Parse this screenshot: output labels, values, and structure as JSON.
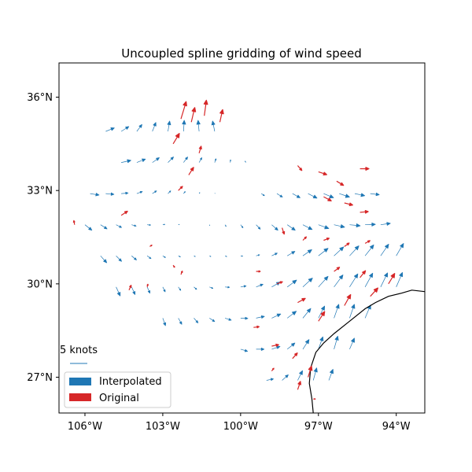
{
  "chart_data": {
    "type": "quiver",
    "title": "Uncoupled spline gridding of wind speed",
    "xlabel": "",
    "ylabel": "",
    "xlim": [
      -107.0,
      -92.9
    ],
    "ylim": [
      25.85,
      37.1
    ],
    "x_ticks": [
      {
        "value": -106,
        "label": "106°W"
      },
      {
        "value": -103,
        "label": "103°W"
      },
      {
        "value": -100,
        "label": "100°W"
      },
      {
        "value": -97,
        "label": "97°W"
      },
      {
        "value": -94,
        "label": "94°W"
      }
    ],
    "y_ticks": [
      {
        "value": 27,
        "label": "27°N"
      },
      {
        "value": 30,
        "label": "30°N"
      },
      {
        "value": 33,
        "label": "33°N"
      },
      {
        "value": 36,
        "label": "36°N"
      }
    ],
    "grid": false,
    "legend": {
      "placement": "bottom-left",
      "items": [
        {
          "label": "Interpolated",
          "color": "#1f77b4"
        },
        {
          "label": "Original",
          "color": "#d62728"
        }
      ]
    },
    "quiver_key": {
      "label": "5 knots",
      "value_knots": 5
    },
    "series": [
      {
        "name": "Interpolated",
        "color": "#1f77b4",
        "note_units": "lon, lat, east-component, north-component (knots)",
        "grid_vectors": [
          [
            -105.2,
            34.9,
            2.5,
            1.0
          ],
          [
            -104.6,
            34.9,
            2.2,
            1.4
          ],
          [
            -104.0,
            34.9,
            1.5,
            2.0
          ],
          [
            -103.4,
            34.9,
            1.0,
            2.6
          ],
          [
            -102.8,
            34.9,
            0.5,
            3.0
          ],
          [
            -102.2,
            34.9,
            0.2,
            3.2
          ],
          [
            -101.6,
            34.9,
            -0.3,
            3.2
          ],
          [
            -101.0,
            34.9,
            -0.6,
            3.0
          ],
          [
            -104.6,
            33.9,
            2.8,
            0.6
          ],
          [
            -104.0,
            33.9,
            2.5,
            1.0
          ],
          [
            -103.4,
            33.9,
            2.0,
            1.4
          ],
          [
            -102.8,
            33.9,
            1.6,
            1.6
          ],
          [
            -102.2,
            33.9,
            1.2,
            1.6
          ],
          [
            -101.6,
            33.9,
            0.8,
            1.4
          ],
          [
            -101.0,
            33.9,
            0.4,
            1.1
          ],
          [
            -100.4,
            33.9,
            0.1,
            0.8
          ],
          [
            -99.8,
            33.9,
            -0.2,
            0.4
          ],
          [
            -105.8,
            32.9,
            2.6,
            -0.4
          ],
          [
            -105.2,
            32.9,
            2.4,
            -0.2
          ],
          [
            -104.6,
            32.9,
            2.0,
            0.2
          ],
          [
            -104.0,
            32.9,
            1.6,
            0.6
          ],
          [
            -103.4,
            32.9,
            1.2,
            0.8
          ],
          [
            -102.8,
            32.9,
            0.8,
            0.8
          ],
          [
            -102.2,
            32.9,
            0.5,
            0.6
          ],
          [
            -101.6,
            32.9,
            0.2,
            0.3
          ],
          [
            -101.0,
            32.9,
            0.1,
            0.1
          ],
          [
            -99.2,
            32.9,
            0.9,
            -0.6
          ],
          [
            -98.6,
            32.9,
            1.6,
            -1.0
          ],
          [
            -98.0,
            32.9,
            2.2,
            -1.2
          ],
          [
            -97.4,
            32.9,
            2.6,
            -1.3
          ],
          [
            -96.8,
            32.9,
            2.9,
            -1.2
          ],
          [
            -96.2,
            32.9,
            3.0,
            -1.0
          ],
          [
            -95.6,
            32.9,
            2.9,
            -0.6
          ],
          [
            -95.0,
            32.9,
            2.6,
            -0.3
          ],
          [
            -106.0,
            31.9,
            2.0,
            -1.6
          ],
          [
            -105.4,
            31.9,
            1.9,
            -1.2
          ],
          [
            -104.8,
            31.9,
            1.6,
            -0.8
          ],
          [
            -104.2,
            31.9,
            1.3,
            -0.4
          ],
          [
            -103.6,
            31.9,
            1.0,
            -0.1
          ],
          [
            -103.0,
            31.9,
            0.6,
            0.1
          ],
          [
            -102.4,
            31.9,
            0.3,
            0.1
          ],
          [
            -101.8,
            31.9,
            0.1,
            0.0
          ],
          [
            -101.2,
            31.9,
            0.1,
            -0.2
          ],
          [
            -100.6,
            31.9,
            0.3,
            -0.5
          ],
          [
            -100.0,
            31.9,
            0.7,
            -0.9
          ],
          [
            -99.4,
            31.9,
            1.2,
            -1.3
          ],
          [
            -98.8,
            31.9,
            1.8,
            -1.6
          ],
          [
            -98.2,
            31.9,
            2.3,
            -1.6
          ],
          [
            -97.6,
            31.9,
            2.7,
            -1.4
          ],
          [
            -97.0,
            31.9,
            3.0,
            -1.1
          ],
          [
            -96.4,
            31.9,
            3.1,
            -0.7
          ],
          [
            -95.8,
            31.9,
            3.1,
            -0.3
          ],
          [
            -95.2,
            31.9,
            3.0,
            0.1
          ],
          [
            -94.6,
            31.9,
            2.8,
            0.4
          ],
          [
            -105.4,
            30.9,
            1.8,
            -2.0
          ],
          [
            -104.8,
            30.9,
            1.6,
            -1.6
          ],
          [
            -104.2,
            30.9,
            1.4,
            -1.2
          ],
          [
            -103.6,
            30.9,
            1.1,
            -0.8
          ],
          [
            -103.0,
            30.9,
            0.8,
            -0.5
          ],
          [
            -102.4,
            30.9,
            0.6,
            -0.3
          ],
          [
            -101.8,
            30.9,
            0.4,
            -0.2
          ],
          [
            -101.2,
            30.9,
            0.4,
            -0.2
          ],
          [
            -100.6,
            30.9,
            0.5,
            -0.2
          ],
          [
            -100.0,
            30.9,
            0.6,
            -0.1
          ],
          [
            -99.4,
            30.9,
            1.0,
            0.3
          ],
          [
            -98.8,
            30.9,
            1.6,
            0.8
          ],
          [
            -98.2,
            30.9,
            2.2,
            1.3
          ],
          [
            -97.6,
            30.9,
            2.6,
            1.8
          ],
          [
            -97.0,
            30.9,
            2.8,
            2.2
          ],
          [
            -96.4,
            30.9,
            2.8,
            2.6
          ],
          [
            -95.8,
            30.9,
            2.7,
            2.9
          ],
          [
            -95.2,
            30.9,
            2.5,
            3.2
          ],
          [
            -94.6,
            30.9,
            2.3,
            3.4
          ],
          [
            -94.0,
            30.9,
            2.1,
            3.6
          ],
          [
            -104.8,
            29.9,
            1.2,
            -2.6
          ],
          [
            -104.2,
            29.9,
            1.0,
            -2.2
          ],
          [
            -103.6,
            29.9,
            0.8,
            -1.8
          ],
          [
            -103.0,
            29.9,
            0.7,
            -1.4
          ],
          [
            -102.4,
            29.9,
            0.7,
            -1.0
          ],
          [
            -101.8,
            29.9,
            0.8,
            -0.7
          ],
          [
            -101.2,
            29.9,
            1.0,
            -0.4
          ],
          [
            -100.6,
            29.9,
            1.3,
            -0.1
          ],
          [
            -100.0,
            29.9,
            1.6,
            0.3
          ],
          [
            -99.4,
            29.9,
            2.0,
            0.8
          ],
          [
            -98.8,
            29.9,
            2.4,
            1.4
          ],
          [
            -98.2,
            29.9,
            2.7,
            2.0
          ],
          [
            -97.6,
            29.9,
            2.8,
            2.6
          ],
          [
            -97.0,
            29.9,
            2.8,
            3.1
          ],
          [
            -96.4,
            29.9,
            2.6,
            3.5
          ],
          [
            -95.8,
            29.9,
            2.4,
            3.8
          ],
          [
            -95.2,
            29.9,
            2.2,
            4.0
          ],
          [
            -94.6,
            29.9,
            2.0,
            4.1
          ],
          [
            -94.0,
            29.9,
            1.8,
            4.2
          ],
          [
            -103.0,
            28.9,
            0.8,
            -2.2
          ],
          [
            -102.4,
            28.9,
            1.0,
            -1.8
          ],
          [
            -101.8,
            28.9,
            1.2,
            -1.4
          ],
          [
            -101.2,
            28.9,
            1.5,
            -1.0
          ],
          [
            -100.6,
            28.9,
            1.8,
            -0.6
          ],
          [
            -100.0,
            28.9,
            2.1,
            -0.1
          ],
          [
            -99.4,
            28.9,
            2.4,
            0.5
          ],
          [
            -98.8,
            28.9,
            2.6,
            1.2
          ],
          [
            -98.2,
            28.9,
            2.6,
            2.0
          ],
          [
            -97.6,
            28.9,
            2.3,
            2.8
          ],
          [
            -97.0,
            28.9,
            1.8,
            3.5
          ],
          [
            -96.4,
            28.9,
            1.4,
            4.0
          ],
          [
            -95.8,
            28.9,
            1.4,
            4.0
          ],
          [
            -95.2,
            28.9,
            1.6,
            3.8
          ],
          [
            -100.0,
            27.9,
            2.0,
            -0.6
          ],
          [
            -99.4,
            27.9,
            2.3,
            0.0
          ],
          [
            -98.8,
            27.9,
            2.4,
            0.8
          ],
          [
            -98.2,
            27.9,
            2.2,
            1.8
          ],
          [
            -97.6,
            27.9,
            1.8,
            2.8
          ],
          [
            -97.0,
            27.9,
            1.3,
            3.6
          ],
          [
            -96.4,
            27.9,
            1.1,
            3.8
          ],
          [
            -95.8,
            27.9,
            1.4,
            3.2
          ],
          [
            -99.0,
            26.9,
            2.0,
            0.4
          ],
          [
            -98.4,
            26.9,
            1.8,
            1.6
          ],
          [
            -97.8,
            26.9,
            1.4,
            2.8
          ],
          [
            -97.2,
            26.9,
            1.0,
            3.6
          ],
          [
            -96.6,
            26.9,
            1.2,
            3.2
          ]
        ]
      },
      {
        "name": "Original",
        "color": "#d62728",
        "note_units": "lon, lat, east-component, north-component (knots)",
        "vectors": [
          [
            -102.3,
            35.3,
            1.5,
            5.0
          ],
          [
            -101.9,
            35.2,
            1.0,
            4.2
          ],
          [
            -101.4,
            35.4,
            0.6,
            4.5
          ],
          [
            -100.8,
            35.2,
            0.8,
            3.6
          ],
          [
            -102.6,
            34.5,
            1.8,
            3.0
          ],
          [
            -101.6,
            34.2,
            0.6,
            2.0
          ],
          [
            -102.0,
            33.5,
            1.4,
            2.2
          ],
          [
            -102.4,
            33.0,
            1.2,
            1.2
          ],
          [
            -104.6,
            32.2,
            1.8,
            1.2
          ],
          [
            -106.4,
            31.9,
            -0.2,
            1.2
          ],
          [
            -103.5,
            31.2,
            0.6,
            0.4
          ],
          [
            -102.6,
            30.6,
            0.4,
            -0.6
          ],
          [
            -104.3,
            29.8,
            0.6,
            1.4
          ],
          [
            -103.6,
            29.9,
            0.2,
            0.8
          ],
          [
            -102.3,
            30.3,
            0.4,
            1.0
          ],
          [
            -97.8,
            33.8,
            1.2,
            -1.4
          ],
          [
            -97.0,
            33.6,
            2.4,
            -0.8
          ],
          [
            -96.3,
            33.3,
            2.0,
            -1.2
          ],
          [
            -95.4,
            33.7,
            2.6,
            0.0
          ],
          [
            -96.8,
            32.8,
            2.2,
            -1.2
          ],
          [
            -96.0,
            32.6,
            2.4,
            -0.6
          ],
          [
            -95.4,
            32.3,
            2.4,
            0.2
          ],
          [
            -98.4,
            31.8,
            0.6,
            -1.8
          ],
          [
            -97.6,
            31.4,
            1.0,
            1.0
          ],
          [
            -96.8,
            31.4,
            1.6,
            0.6
          ],
          [
            -96.0,
            31.2,
            1.4,
            1.0
          ],
          [
            -95.2,
            31.3,
            1.4,
            0.8
          ],
          [
            -96.4,
            30.4,
            1.6,
            1.2
          ],
          [
            -95.4,
            30.2,
            1.6,
            2.0
          ],
          [
            -94.3,
            30.0,
            1.8,
            3.0
          ],
          [
            -99.4,
            30.4,
            1.2,
            0.0
          ],
          [
            -98.6,
            30.0,
            1.6,
            0.6
          ],
          [
            -97.8,
            29.4,
            2.2,
            1.2
          ],
          [
            -97.0,
            28.8,
            1.8,
            2.8
          ],
          [
            -96.0,
            29.3,
            1.8,
            3.2
          ],
          [
            -95.0,
            29.6,
            2.2,
            2.4
          ],
          [
            -99.5,
            28.6,
            1.6,
            0.2
          ],
          [
            -98.8,
            28.0,
            2.0,
            0.4
          ],
          [
            -98.0,
            27.6,
            1.4,
            1.6
          ],
          [
            -97.4,
            27.0,
            1.0,
            3.2
          ],
          [
            -97.8,
            26.6,
            0.8,
            2.4
          ],
          [
            -98.8,
            27.2,
            0.6,
            0.8
          ],
          [
            -97.2,
            26.3,
            0.6,
            0.0
          ]
        ]
      }
    ],
    "coastline": [
      [
        -97.2,
        25.85
      ],
      [
        -97.25,
        26.3
      ],
      [
        -97.35,
        26.8
      ],
      [
        -97.3,
        27.3
      ],
      [
        -97.1,
        27.8
      ],
      [
        -96.8,
        28.1
      ],
      [
        -96.4,
        28.4
      ],
      [
        -95.8,
        28.8
      ],
      [
        -95.2,
        29.2
      ],
      [
        -94.8,
        29.4
      ],
      [
        -94.3,
        29.6
      ],
      [
        -93.8,
        29.7
      ],
      [
        -93.4,
        29.8
      ],
      [
        -92.9,
        29.75
      ]
    ]
  }
}
